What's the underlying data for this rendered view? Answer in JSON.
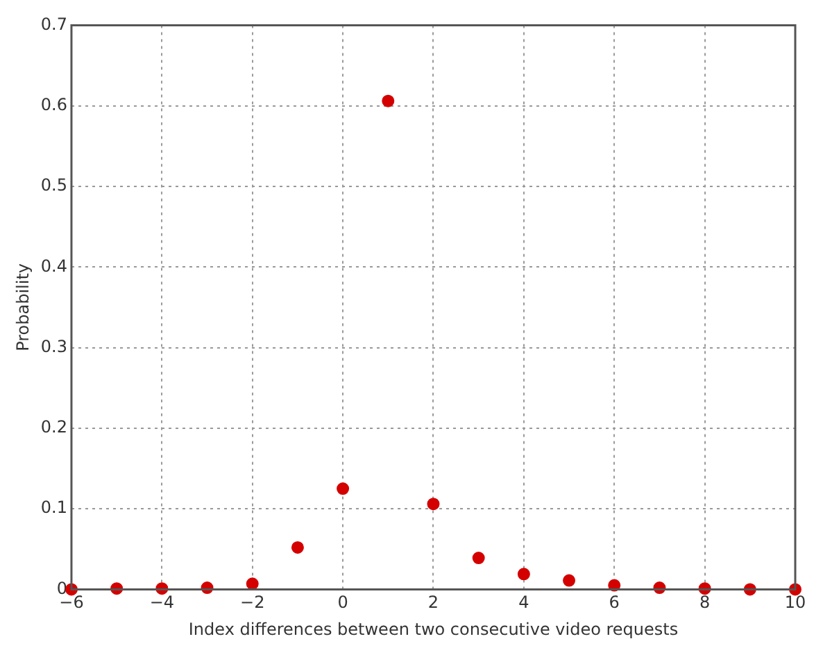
{
  "chart_data": {
    "type": "scatter",
    "xlabel": "Index differences between two consecutive video requests",
    "ylabel": "Probability",
    "x": [
      -6,
      -5,
      -4,
      -3,
      -2,
      -1,
      0,
      1,
      2,
      3,
      4,
      5,
      6,
      7,
      8,
      9,
      10
    ],
    "series": [
      {
        "color": "#d40000",
        "values": [
          0,
          0.001,
          0.001,
          0.002,
          0.007,
          0.052,
          0.125,
          0.606,
          0.106,
          0.039,
          0.019,
          0.011,
          0.005,
          0.002,
          0.001,
          0,
          0
        ]
      }
    ],
    "xlim": [
      -6,
      10
    ],
    "xticks": [
      -6,
      -4,
      -2,
      0,
      2,
      4,
      6,
      8,
      10
    ],
    "ylim": [
      0,
      0.7
    ],
    "yticks": [
      0,
      0.1,
      0.2,
      0.3,
      0.4,
      0.5,
      0.6,
      0.7
    ],
    "grid": true,
    "marker": "circle",
    "legend": false
  }
}
